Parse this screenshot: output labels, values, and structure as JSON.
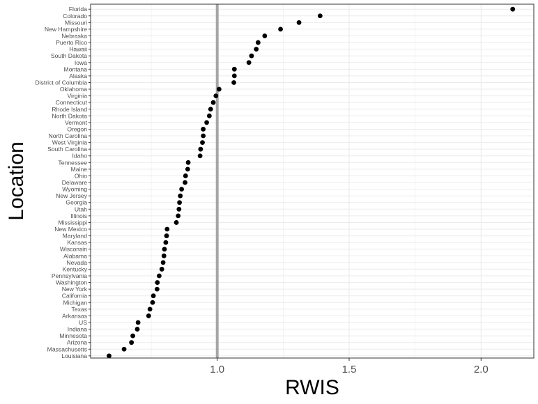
{
  "chart_data": {
    "type": "scatter",
    "xlabel": "RWIS",
    "ylabel": "Location",
    "xlim": [
      0.52,
      2.2
    ],
    "xticks": [
      1.0,
      1.5,
      2.0
    ],
    "xtick_labels": [
      "1.0",
      "1.5",
      "2.0"
    ],
    "reference_line": 1.0,
    "grid": true,
    "colors": {
      "points": "#000000",
      "reference_line": "#a6a6a6",
      "panel_border": "#333333",
      "grid": "#ebebeb"
    },
    "points": [
      {
        "location": "Florida",
        "value": 2.12
      },
      {
        "location": "Colorado",
        "value": 1.39
      },
      {
        "location": "Missouri",
        "value": 1.31
      },
      {
        "location": "New Hampshire",
        "value": 1.24
      },
      {
        "location": "Nebraska",
        "value": 1.18
      },
      {
        "location": "Puerto Rico",
        "value": 1.155
      },
      {
        "location": "Hawaii",
        "value": 1.148
      },
      {
        "location": "South Dakota",
        "value": 1.13
      },
      {
        "location": "Iowa",
        "value": 1.12
      },
      {
        "location": "Montana",
        "value": 1.065
      },
      {
        "location": "Alaska",
        "value": 1.065
      },
      {
        "location": "District of Columbia",
        "value": 1.063
      },
      {
        "location": "Oklahoma",
        "value": 1.007
      },
      {
        "location": "Virginia",
        "value": 0.995
      },
      {
        "location": "Connecticut",
        "value": 0.985
      },
      {
        "location": "Rhode Island",
        "value": 0.975
      },
      {
        "location": "North Dakota",
        "value": 0.97
      },
      {
        "location": "Vermont",
        "value": 0.96
      },
      {
        "location": "Oregon",
        "value": 0.947
      },
      {
        "location": "North Carolina",
        "value": 0.947
      },
      {
        "location": "West Virginia",
        "value": 0.944
      },
      {
        "location": "South Carolina",
        "value": 0.937
      },
      {
        "location": "Idaho",
        "value": 0.935
      },
      {
        "location": "Tennessee",
        "value": 0.89
      },
      {
        "location": "Maine",
        "value": 0.888
      },
      {
        "location": "Ohio",
        "value": 0.88
      },
      {
        "location": "Delaware",
        "value": 0.878
      },
      {
        "location": "Wyoming",
        "value": 0.865
      },
      {
        "location": "New Jersey",
        "value": 0.86
      },
      {
        "location": "Georgia",
        "value": 0.857
      },
      {
        "location": "Utah",
        "value": 0.855
      },
      {
        "location": "Illinois",
        "value": 0.852
      },
      {
        "location": "Mississippi",
        "value": 0.845
      },
      {
        "location": "New Mexico",
        "value": 0.81
      },
      {
        "location": "Maryland",
        "value": 0.808
      },
      {
        "location": "Kansas",
        "value": 0.805
      },
      {
        "location": "Wisconsin",
        "value": 0.8
      },
      {
        "location": "Alabama",
        "value": 0.798
      },
      {
        "location": "Nevada",
        "value": 0.795
      },
      {
        "location": "Kentucky",
        "value": 0.79
      },
      {
        "location": "Pennsylvania",
        "value": 0.78
      },
      {
        "location": "Washington",
        "value": 0.773
      },
      {
        "location": "New York",
        "value": 0.772
      },
      {
        "location": "California",
        "value": 0.758
      },
      {
        "location": "Michigan",
        "value": 0.755
      },
      {
        "location": "Texas",
        "value": 0.745
      },
      {
        "location": "Arkansas",
        "value": 0.74
      },
      {
        "location": "US",
        "value": 0.7
      },
      {
        "location": "Indiana",
        "value": 0.697
      },
      {
        "location": "Minnesota",
        "value": 0.68
      },
      {
        "location": "Arizona",
        "value": 0.675
      },
      {
        "location": "Massachusetts",
        "value": 0.647
      },
      {
        "location": "Louisiana",
        "value": 0.59
      }
    ]
  }
}
